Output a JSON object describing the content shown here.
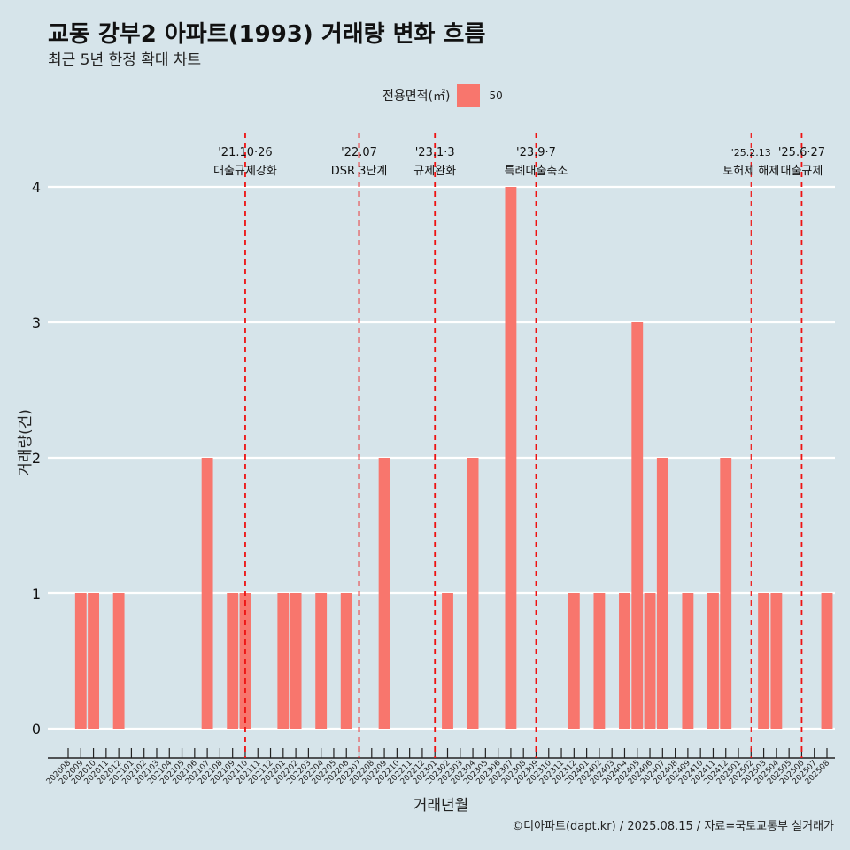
{
  "title": "교동 강부2 아파트(1993) 거래량 변화 흐름",
  "subtitle": "최근 5년 한정 확대 차트",
  "legend": {
    "title": "전용면적(㎡)",
    "items": [
      {
        "label": "50",
        "color": "#f8766d"
      }
    ]
  },
  "caption": "©디아파트(dapt.kr) / 2025.08.15 / 자료=국토교통부 실거래가",
  "colors": {
    "background": "#d6e4ea",
    "bar": "#f8766d",
    "event_line": "#ee1111",
    "grid": "#ffffff"
  },
  "chart_data": {
    "type": "bar",
    "xlabel": "거래년월",
    "ylabel": "거래량(건)",
    "ylim": [
      0,
      4
    ],
    "yticks": [
      0,
      1,
      2,
      3,
      4
    ],
    "grid": true,
    "categories": [
      "202008",
      "202009",
      "202010",
      "202011",
      "202012",
      "202101",
      "202102",
      "202103",
      "202104",
      "202105",
      "202106",
      "202107",
      "202108",
      "202109",
      "202110",
      "202111",
      "202112",
      "202201",
      "202202",
      "202203",
      "202204",
      "202205",
      "202206",
      "202207",
      "202208",
      "202209",
      "202210",
      "202211",
      "202212",
      "202301",
      "202302",
      "202303",
      "202304",
      "202305",
      "202306",
      "202307",
      "202308",
      "202309",
      "202310",
      "202311",
      "202312",
      "202401",
      "202402",
      "202403",
      "202404",
      "202405",
      "202406",
      "202407",
      "202408",
      "202409",
      "202410",
      "202411",
      "202412",
      "202501",
      "202502",
      "202503",
      "202504",
      "202505",
      "202506",
      "202507",
      "202508"
    ],
    "series": [
      {
        "name": "50",
        "values": [
          0,
          1,
          1,
          0,
          1,
          0,
          0,
          0,
          0,
          0,
          0,
          2,
          0,
          1,
          1,
          0,
          0,
          1,
          1,
          0,
          1,
          0,
          1,
          0,
          0,
          2,
          0,
          0,
          0,
          0,
          1,
          0,
          2,
          0,
          0,
          4,
          0,
          0,
          0,
          0,
          1,
          0,
          1,
          0,
          1,
          3,
          1,
          2,
          0,
          1,
          0,
          1,
          2,
          0,
          0,
          1,
          1,
          0,
          0,
          0,
          1
        ]
      }
    ],
    "annotations": [
      {
        "at": "202110",
        "date": "'21.10·26",
        "label": "대출규제강화"
      },
      {
        "at": "202207",
        "date": "'22.07",
        "label": "DSR 3단계"
      },
      {
        "at": "202301",
        "date": "'23.1·3",
        "label": "규제완화"
      },
      {
        "at": "202309",
        "date": "'23.9·7",
        "label": "특례대출축소"
      },
      {
        "at": "202502",
        "date": "'25.2.13",
        "label": "토허제 해제"
      },
      {
        "at": "202506",
        "date": "'25.6·27",
        "label": "대출규제"
      }
    ]
  }
}
